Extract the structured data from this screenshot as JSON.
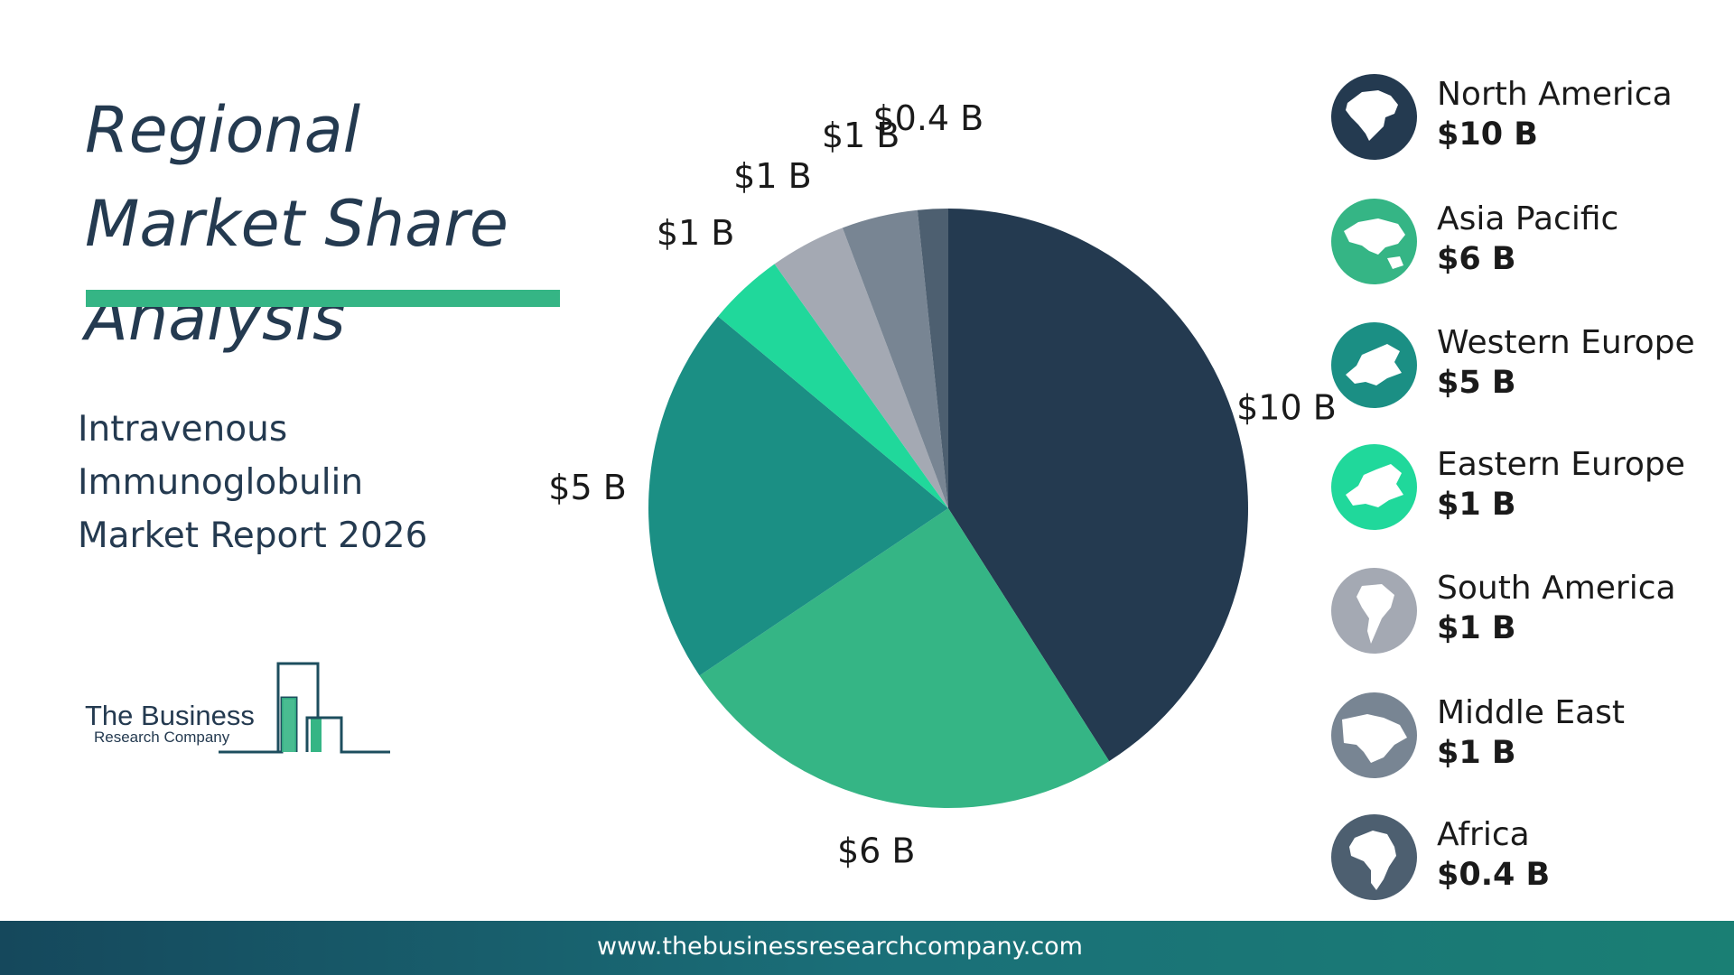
{
  "title": "Regional Market Share Analysis",
  "subtitle_lines": [
    "Intravenous",
    "Immunoglobulin",
    "Market Report 2026"
  ],
  "logo": {
    "line1": "The Business",
    "line2": "Research Company"
  },
  "footer": {
    "url": "www.thebusinessresearchcompany.com"
  },
  "colors": {
    "primary_text": "#243a50",
    "accent_bar": "#35b585",
    "footer_start": "#15485c",
    "footer_end": "#1a7f74"
  },
  "legend": [
    {
      "name": "North America",
      "value": "$10 B",
      "icon": "north-america-map-icon",
      "color": "#243a50"
    },
    {
      "name": "Asia Pacific",
      "value": "$6 B",
      "icon": "asia-pacific-map-icon",
      "color": "#35b585"
    },
    {
      "name": "Western Europe",
      "value": "$5 B",
      "icon": "western-europe-map-icon",
      "color": "#1b8f84"
    },
    {
      "name": "Eastern Europe",
      "value": "$1 B",
      "icon": "eastern-europe-map-icon",
      "color": "#20d89b"
    },
    {
      "name": "South America",
      "value": "$1 B",
      "icon": "south-america-map-icon",
      "color": "#a4a9b3"
    },
    {
      "name": "Middle East",
      "value": "$1 B",
      "icon": "middle-east-map-icon",
      "color": "#788593"
    },
    {
      "name": "Africa",
      "value": " $0.4 B",
      "icon": "africa-map-icon",
      "color": "#4d5f70"
    }
  ],
  "chart_data": {
    "type": "pie",
    "title": "Regional Market Share Analysis",
    "start_angle_deg": 0,
    "direction": "clockwise",
    "slices": [
      {
        "name": "North America",
        "value": 10,
        "label": "$10 B",
        "color": "#243a50"
      },
      {
        "name": "Asia Pacific",
        "value": 6,
        "label": "$6 B",
        "color": "#35b585"
      },
      {
        "name": "Western Europe",
        "value": 5,
        "label": "$5 B",
        "color": "#1b8f84"
      },
      {
        "name": "Eastern Europe",
        "value": 1,
        "label": "$1 B",
        "color": "#20d89b"
      },
      {
        "name": "South America",
        "value": 1,
        "label": "$1 B",
        "color": "#a4a9b3"
      },
      {
        "name": "Middle East",
        "value": 1,
        "label": "$1 B",
        "color": "#788593"
      },
      {
        "name": "Africa",
        "value": 0.4,
        "label": "$0.4 B",
        "color": "#4d5f70"
      }
    ],
    "legend_position": "right"
  }
}
